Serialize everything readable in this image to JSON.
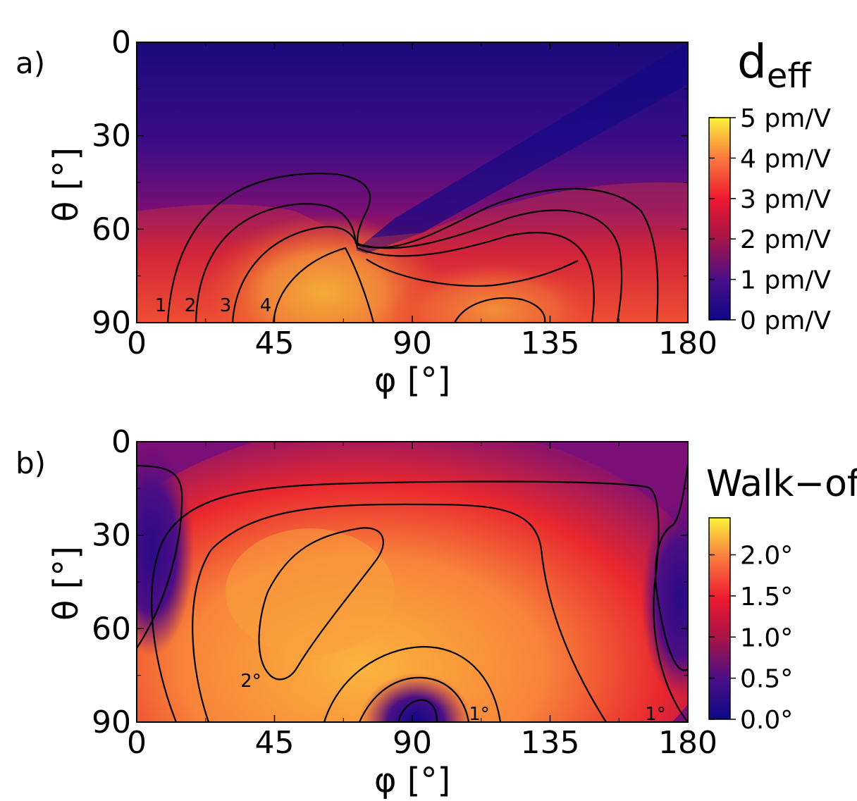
{
  "chart_data": [
    {
      "type": "heatmap",
      "panel_label": "a)",
      "title": "d",
      "title_subscript": "eff",
      "xlabel": "φ [°]",
      "ylabel": "θ [°]",
      "xlim": [
        0,
        180
      ],
      "ylim": [
        90,
        0
      ],
      "x_ticks": [
        "0",
        "45",
        "90",
        "135",
        "180"
      ],
      "y_ticks": [
        "0",
        "30",
        "60",
        "90"
      ],
      "colormap": "plasma-like (dark blue → red → yellow)",
      "colorbar": {
        "range": [
          0,
          5
        ],
        "ticks": [
          "0 pm/V",
          "1 pm/V",
          "2 pm/V",
          "3 pm/V",
          "4 pm/V",
          "5 pm/V"
        ]
      },
      "contour_levels": [
        1,
        2,
        3,
        4
      ],
      "contour_labels": [
        "1",
        "2",
        "3",
        "4"
      ],
      "features": [
        {
          "note": "maximum ~4.8 pm/V near phi 60, theta 80-90"
        },
        {
          "note": "secondary maximum ~4 pm/V near phi 120, theta 90"
        },
        {
          "note": "zero line from phi 73, theta 65 to phi 180, theta 0"
        }
      ]
    },
    {
      "type": "heatmap",
      "panel_label": "b)",
      "title": "Walk−off",
      "xlabel": "φ [°]",
      "ylabel": "θ [°]",
      "xlim": [
        0,
        180
      ],
      "ylim": [
        90,
        0
      ],
      "x_ticks": [
        "0",
        "45",
        "90",
        "135",
        "180"
      ],
      "y_ticks": [
        "0",
        "30",
        "60",
        "90"
      ],
      "colormap": "plasma-like (dark blue → red → yellow)",
      "colorbar": {
        "range": [
          0,
          2.45
        ],
        "ticks": [
          "0.0°",
          "0.5°",
          "1.0°",
          "1.5°",
          "2.0°"
        ]
      },
      "contour_levels": [
        0.5,
        1.0,
        1.5,
        2.0
      ],
      "contour_labels": [
        "2°",
        "1°",
        "1°"
      ],
      "features": [
        {
          "note": "maximum ~2.1° near phi 45, theta 60"
        },
        {
          "note": "minimum ~0° at phi 90, theta 90"
        },
        {
          "note": "low values near phi 0 and phi 180 at theta 30-70"
        }
      ]
    }
  ]
}
